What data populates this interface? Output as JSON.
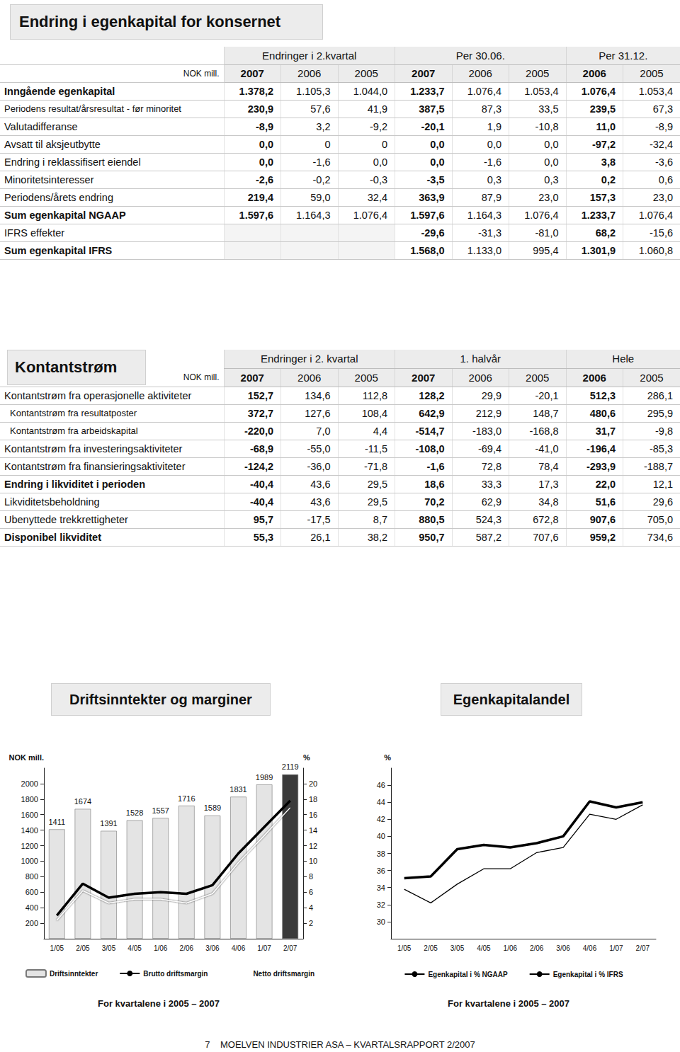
{
  "equity_table": {
    "title": "Endring i egenkapital for konsernet",
    "unit": "NOK mill.",
    "groups": [
      "Endringer i 2.kvartal",
      "Per 30.06.",
      "Per 31.12."
    ],
    "years": [
      "2007",
      "2006",
      "2005",
      "2007",
      "2006",
      "2005",
      "2006",
      "2005"
    ],
    "rows": [
      [
        "Inngående egenkapital",
        "1.378,2",
        "1.105,3",
        "1.044,0",
        "1.233,7",
        "1.076,4",
        "1.053,4",
        "1.076,4",
        "1.053,4"
      ],
      [
        "Periodens resultat/årsresultat - før minoritet",
        "230,9",
        "57,6",
        "41,9",
        "387,5",
        "87,3",
        "33,5",
        "239,5",
        "67,3"
      ],
      [
        "Valutadifferanse",
        "-8,9",
        "3,2",
        "-9,2",
        "-20,1",
        "1,9",
        "-10,8",
        "11,0",
        "-8,9"
      ],
      [
        "Avsatt til aksjeutbytte",
        "0,0",
        "0",
        "0",
        "0,0",
        "0,0",
        "0,0",
        "-97,2",
        "-32,4"
      ],
      [
        "Endring i reklassifisert eiendel",
        "0,0",
        "-1,6",
        "0,0",
        "0,0",
        "-1,6",
        "0,0",
        "3,8",
        "-3,6"
      ],
      [
        "Minoritetsinteresser",
        "-2,6",
        "-0,2",
        "-0,3",
        "-3,5",
        "0,3",
        "0,3",
        "0,2",
        "0,6"
      ],
      [
        "Periodens/årets endring",
        "219,4",
        "59,0",
        "32,4",
        "363,9",
        "87,9",
        "23,0",
        "157,3",
        "23,0"
      ],
      [
        "Sum egenkapital NGAAP",
        "1.597,6",
        "1.164,3",
        "1.076,4",
        "1.597,6",
        "1.164,3",
        "1.076,4",
        "1.233,7",
        "1.076,4"
      ],
      [
        "IFRS effekter",
        null,
        null,
        null,
        "-29,6",
        "-31,3",
        "-81,0",
        "68,2",
        "-15,6"
      ],
      [
        "Sum egenkapital IFRS",
        null,
        null,
        null,
        "1.568,0",
        "1.133,0",
        "995,4",
        "1.301,9",
        "1.060,8"
      ]
    ]
  },
  "cashflow_table": {
    "title": "Kontantstrøm",
    "unit": "NOK mill.",
    "groups": [
      "Endringer i 2. kvartal",
      "1. halvår",
      "Hele"
    ],
    "years": [
      "2007",
      "2006",
      "2005",
      "2007",
      "2006",
      "2005",
      "2006",
      "2005"
    ],
    "rows": [
      [
        "Kontantstrøm fra operasjonelle aktiviteter",
        "152,7",
        "134,6",
        "112,8",
        "128,2",
        "29,9",
        "-20,1",
        "512,3",
        "286,1"
      ],
      [
        "Kontantstrøm fra resultatposter",
        "372,7",
        "127,6",
        "108,4",
        "642,9",
        "212,9",
        "148,7",
        "480,6",
        "295,9"
      ],
      [
        "Kontantstrøm fra arbeidskapital",
        "-220,0",
        "7,0",
        "4,4",
        "-514,7",
        "-183,0",
        "-168,8",
        "31,7",
        "-9,8"
      ],
      [
        "Kontantstrøm fra investeringsaktiviteter",
        "-68,9",
        "-55,0",
        "-11,5",
        "-108,0",
        "-69,4",
        "-41,0",
        "-196,4",
        "-85,3"
      ],
      [
        "Kontantstrøm fra finansieringsaktiviteter",
        "-124,2",
        "-36,0",
        "-71,8",
        "-1,6",
        "72,8",
        "78,4",
        "-293,9",
        "-188,7"
      ],
      [
        "Endring i likviditet i perioden",
        "-40,4",
        "43,6",
        "29,5",
        "18,6",
        "33,3",
        "17,3",
        "22,0",
        "12,1"
      ],
      [
        "Likviditetsbeholdning",
        "-40,4",
        "43,6",
        "29,5",
        "70,2",
        "62,9",
        "34,8",
        "51,6",
        "29,6"
      ],
      [
        "Ubenyttede trekkrettigheter",
        "95,7",
        "-17,5",
        "8,7",
        "880,5",
        "524,3",
        "672,8",
        "907,6",
        "705,0"
      ],
      [
        "Disponibel likviditet",
        "55,3",
        "26,1",
        "38,2",
        "950,7",
        "587,2",
        "707,6",
        "959,2",
        "734,6"
      ]
    ]
  },
  "chart_data": [
    {
      "type": "bar",
      "title": "Driftsinntekter og marginer",
      "caption": "For kvartalene i 2005 – 2007",
      "categories": [
        "1/05",
        "2/05",
        "3/05",
        "4/05",
        "1/06",
        "2/06",
        "3/06",
        "4/06",
        "1/07",
        "2/07"
      ],
      "y_label": "NOK mill.",
      "y2_label": "%",
      "ylim": [
        0,
        2200
      ],
      "yticks": [
        200,
        400,
        600,
        800,
        1000,
        1200,
        1400,
        1600,
        1800,
        2000
      ],
      "y2lim": [
        0,
        22
      ],
      "y2ticks": [
        2,
        4,
        6,
        8,
        10,
        12,
        14,
        16,
        18,
        20
      ],
      "grid": false,
      "legend": "bottom",
      "series": [
        {
          "name": "Driftsinntekter",
          "type": "bar",
          "data_labels": true,
          "colors": [
            "#e4e4e4",
            "#e4e4e4",
            "#e4e4e4",
            "#e4e4e4",
            "#e4e4e4",
            "#e4e4e4",
            "#e4e4e4",
            "#e4e4e4",
            "#e4e4e4",
            "#3a3a3a"
          ],
          "values": [
            1411,
            1674,
            1391,
            1528,
            1557,
            1716,
            1589,
            1831,
            1989,
            2119
          ]
        },
        {
          "name": "Brutto driftsmargin",
          "type": "line",
          "axis": "y2",
          "color": "#000000",
          "line_style": "bold",
          "marker": "none",
          "values": [
            3.0,
            7.1,
            5.3,
            5.8,
            6.0,
            5.8,
            6.9,
            11.0,
            14.4,
            17.8
          ]
        },
        {
          "name": "Netto driftsmargin",
          "type": "line",
          "axis": "y2",
          "color": "#ffffff",
          "line_style": "solid",
          "marker": "none",
          "values": [
            2.4,
            6.2,
            4.6,
            5.1,
            5.1,
            4.6,
            5.8,
            9.8,
            13.3,
            16.9
          ]
        }
      ]
    },
    {
      "type": "line",
      "title": "Egenkapitalandel",
      "caption": "For kvartalene i 2005 – 2007",
      "categories": [
        "1/05",
        "2/05",
        "3/05",
        "4/05",
        "1/06",
        "2/06",
        "3/06",
        "4/06",
        "1/07",
        "2/07"
      ],
      "y_label": "%",
      "ylim": [
        28,
        48
      ],
      "yticks": [
        30,
        32,
        34,
        36,
        38,
        40,
        42,
        44,
        46
      ],
      "grid": false,
      "legend": "bottom",
      "series": [
        {
          "name": "Egenkapital i % NGAAP",
          "color": "#000000",
          "line_style": "bold",
          "marker": "none",
          "values": [
            35.1,
            35.3,
            38.5,
            39.0,
            38.7,
            39.2,
            40.0,
            44.1,
            43.4,
            44.0
          ]
        },
        {
          "name": "Egenkapital i % IFRS",
          "color": "#000000",
          "line_style": "solid",
          "marker": "none",
          "values": [
            33.8,
            32.2,
            34.4,
            36.2,
            36.2,
            38.1,
            38.7,
            42.6,
            42.0,
            43.7
          ]
        }
      ]
    }
  ],
  "footer": {
    "page": "7",
    "text": "MOELVEN INDUSTRIER ASA – KVARTALSRAPPORT 2/2007"
  }
}
